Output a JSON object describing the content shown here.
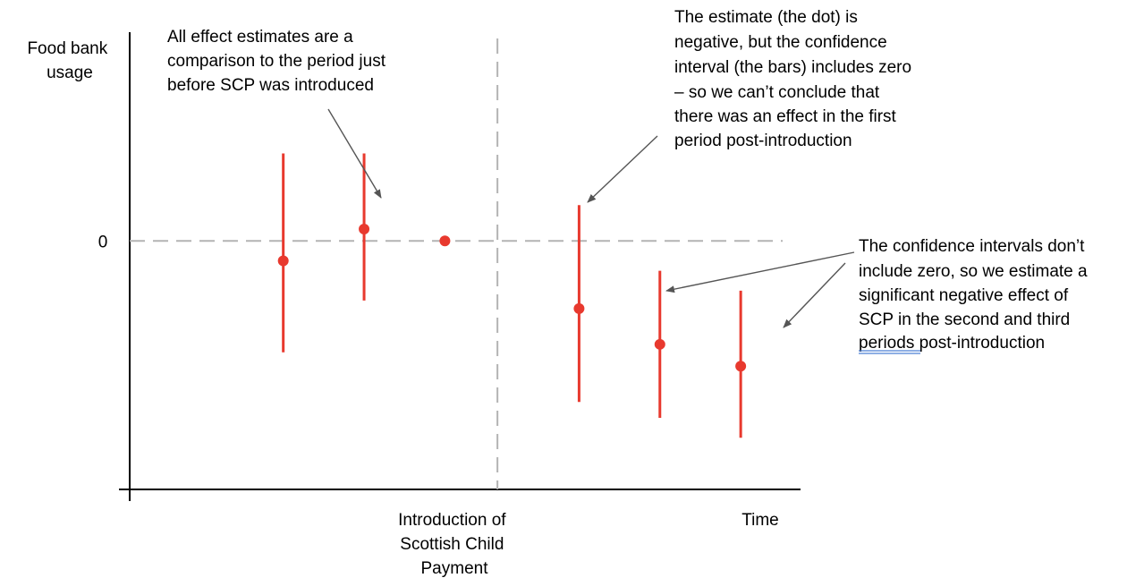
{
  "colors": {
    "estimate": "#e8392e",
    "axis": "#000000",
    "reference_line": "#b3b3b3",
    "arrow": "#555555",
    "text": "#000000",
    "spellcheck_underline": "#4a7fd4"
  },
  "chart_data": {
    "type": "scatter",
    "subtype": "event-study coefficient plot with confidence intervals",
    "title": "",
    "ylabel": [
      "Food bank",
      "usage"
    ],
    "xlabel": "Time",
    "ytick_label": "0",
    "event_label": [
      "Introduction of",
      "Scottish Child",
      "Payment"
    ],
    "ylim": [
      -1.25,
      1.05
    ],
    "reference_value": 0,
    "event_x": 3.65,
    "grid": false,
    "legend": "none",
    "x_range": [
      -0.9,
      7.4
    ],
    "points": [
      {
        "period": 1,
        "estimate": -0.1,
        "ci_low": -0.56,
        "ci_high": 0.44
      },
      {
        "period": 2,
        "estimate": 0.06,
        "ci_low": -0.3,
        "ci_high": 0.44
      },
      {
        "period": 3,
        "estimate": 0.0,
        "ci_low": null,
        "ci_high": null
      },
      {
        "period": 4.66,
        "estimate": -0.34,
        "ci_low": -0.81,
        "ci_high": 0.18
      },
      {
        "period": 5.66,
        "estimate": -0.52,
        "ci_low": -0.89,
        "ci_high": -0.15
      },
      {
        "period": 6.66,
        "estimate": -0.63,
        "ci_low": -0.99,
        "ci_high": -0.25
      }
    ],
    "annotations": [
      {
        "id": "baseline-note",
        "lines": [
          "All effect estimates are a",
          "comparison to the period just",
          "before SCP was introduced"
        ]
      },
      {
        "id": "first-period-note",
        "lines": [
          "The estimate (the dot) is",
          "negative, but the confidence",
          "interval (the bars) includes zero",
          "– so we can’t conclude that",
          "there was an effect in the first",
          "period post-introduction"
        ]
      },
      {
        "id": "later-periods-note",
        "lines": [
          "The confidence intervals don’t",
          "include zero, so we estimate a",
          "significant negative effect of",
          "SCP in the second and third"
        ],
        "last_line_underlined": "periods",
        "last_line_rest": " post-introduction"
      }
    ]
  }
}
